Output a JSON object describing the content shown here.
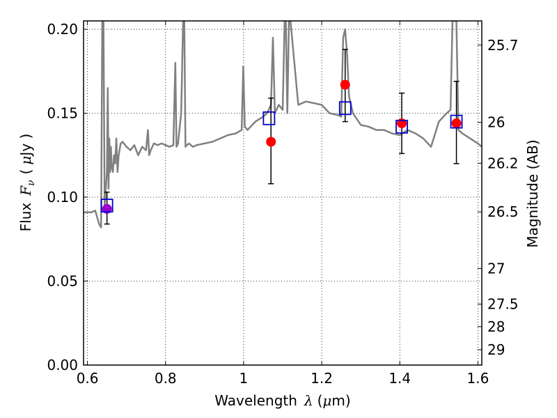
{
  "chart_data": {
    "type": "line",
    "xlabel": {
      "text": "Wavelength",
      "symbol": "λ",
      "unit_open": "(",
      "unit_mu": "μ",
      "unit_rest": "m)"
    },
    "ylabel": {
      "text": "Flux",
      "symbol": "F",
      "subscript": "ν",
      "unit_open": "(",
      "unit_mu": "μ",
      "unit_rest": "Jy )"
    },
    "y2label": "Magnitude (AB)",
    "xlim": [
      0.59,
      1.61
    ],
    "ylim": [
      0.0,
      0.205
    ],
    "x_ticks": [
      {
        "value": 0.6,
        "label": "0.6"
      },
      {
        "value": 0.8,
        "label": "0.8"
      },
      {
        "value": 1.0,
        "label": "1"
      },
      {
        "value": 1.2,
        "label": "1.2"
      },
      {
        "value": 1.4,
        "label": "1.4"
      },
      {
        "value": 1.6,
        "label": "1.6"
      }
    ],
    "y_ticks": [
      {
        "value": 0.0,
        "label": "0.00"
      },
      {
        "value": 0.05,
        "label": "0.05"
      },
      {
        "value": 0.1,
        "label": "0.10"
      },
      {
        "value": 0.15,
        "label": "0.15"
      },
      {
        "value": 0.2,
        "label": "0.20"
      }
    ],
    "y2_ticks": [
      {
        "value": 25.7,
        "label": "25.7"
      },
      {
        "value": 26.0,
        "label": "26"
      },
      {
        "value": 26.2,
        "label": "26.2"
      },
      {
        "value": 26.5,
        "label": "26.5"
      },
      {
        "value": 27.0,
        "label": "27"
      },
      {
        "value": 27.5,
        "label": "27.5"
      },
      {
        "value": 28.0,
        "label": "28"
      },
      {
        "value": 29.0,
        "label": "29"
      }
    ],
    "grid": true,
    "colors": {
      "spectrum": "#808080",
      "model_box": "#0000cc",
      "observed_point": "#ff0000",
      "first_point": "#9900cc",
      "errorbar": "#000000"
    },
    "series": [
      {
        "type": "line",
        "x": [
          0.59,
          0.61,
          0.62,
          0.63,
          0.635,
          0.638,
          0.641,
          0.644,
          0.647,
          0.65,
          0.652,
          0.654,
          0.656,
          0.658,
          0.66,
          0.662,
          0.665,
          0.668,
          0.671,
          0.674,
          0.677,
          0.68,
          0.685,
          0.69,
          0.7,
          0.71,
          0.72,
          0.73,
          0.74,
          0.75,
          0.755,
          0.758,
          0.762,
          0.77,
          0.78,
          0.79,
          0.8,
          0.81,
          0.82,
          0.825,
          0.828,
          0.832,
          0.84,
          0.845,
          0.848,
          0.851,
          0.855,
          0.86,
          0.87,
          0.88,
          0.9,
          0.92,
          0.94,
          0.96,
          0.98,
          0.995,
          0.999,
          1.003,
          1.01,
          1.03,
          1.05,
          1.06,
          1.07,
          1.075,
          1.08,
          1.09,
          1.1,
          1.105,
          1.108,
          1.112,
          1.116,
          1.12,
          1.14,
          1.16,
          1.18,
          1.2,
          1.22,
          1.24,
          1.25,
          1.255,
          1.26,
          1.265,
          1.27,
          1.28,
          1.3,
          1.32,
          1.34,
          1.36,
          1.38,
          1.4,
          1.42,
          1.44,
          1.46,
          1.48,
          1.5,
          1.52,
          1.53,
          1.535,
          1.54,
          1.545,
          1.55,
          1.56,
          1.58,
          1.6,
          1.61
        ],
        "y": [
          0.091,
          0.091,
          0.092,
          0.084,
          0.082,
          0.205,
          0.205,
          0.095,
          0.105,
          0.115,
          0.165,
          0.105,
          0.135,
          0.115,
          0.13,
          0.118,
          0.115,
          0.125,
          0.12,
          0.135,
          0.115,
          0.125,
          0.132,
          0.133,
          0.13,
          0.128,
          0.131,
          0.125,
          0.13,
          0.128,
          0.14,
          0.125,
          0.128,
          0.132,
          0.131,
          0.132,
          0.131,
          0.13,
          0.131,
          0.18,
          0.13,
          0.132,
          0.15,
          0.205,
          0.205,
          0.13,
          0.131,
          0.132,
          0.13,
          0.131,
          0.132,
          0.133,
          0.135,
          0.137,
          0.138,
          0.14,
          0.178,
          0.142,
          0.14,
          0.145,
          0.148,
          0.15,
          0.155,
          0.195,
          0.15,
          0.155,
          0.152,
          0.205,
          0.205,
          0.15,
          0.205,
          0.205,
          0.155,
          0.157,
          0.156,
          0.155,
          0.15,
          0.149,
          0.148,
          0.195,
          0.2,
          0.185,
          0.16,
          0.15,
          0.143,
          0.142,
          0.14,
          0.14,
          0.138,
          0.137,
          0.14,
          0.138,
          0.135,
          0.13,
          0.145,
          0.15,
          0.152,
          0.205,
          0.205,
          0.205,
          0.14,
          0.138,
          0.135,
          0.132,
          0.13
        ]
      },
      {
        "type": "model_boxes",
        "points": [
          {
            "x": 0.65,
            "y": 0.095
          },
          {
            "x": 1.065,
            "y": 0.147
          },
          {
            "x": 1.26,
            "y": 0.153
          },
          {
            "x": 1.405,
            "y": 0.142
          },
          {
            "x": 1.545,
            "y": 0.145
          }
        ]
      },
      {
        "type": "observed_points",
        "points": [
          {
            "x": 0.65,
            "y": 0.093,
            "yerr_lo": 0.084,
            "yerr_hi": 0.103,
            "first": true
          },
          {
            "x": 1.07,
            "y": 0.133,
            "yerr_lo": 0.108,
            "yerr_hi": 0.159
          },
          {
            "x": 1.26,
            "y": 0.167,
            "yerr_lo": 0.145,
            "yerr_hi": 0.188
          },
          {
            "x": 1.405,
            "y": 0.144,
            "yerr_lo": 0.126,
            "yerr_hi": 0.162
          },
          {
            "x": 1.545,
            "y": 0.144,
            "yerr_lo": 0.12,
            "yerr_hi": 0.169
          }
        ]
      }
    ]
  }
}
